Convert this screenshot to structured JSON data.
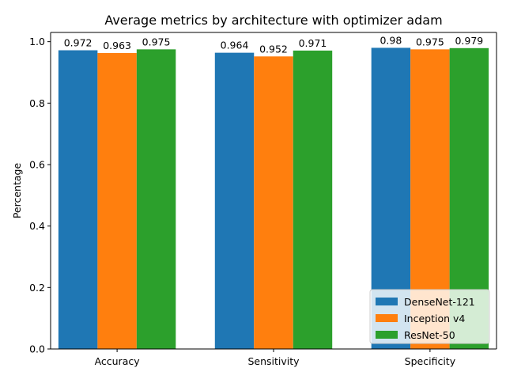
{
  "chart_data": {
    "type": "bar",
    "title": "Average metrics by architecture with optimizer adam",
    "xlabel": "",
    "ylabel": "Percentage",
    "categories": [
      "Accuracy",
      "Sensitivity",
      "Specificity"
    ],
    "ylim": [
      0,
      1.03
    ],
    "yticks": [
      0.0,
      0.2,
      0.4,
      0.6,
      0.8,
      1.0
    ],
    "ytick_labels": [
      "0.0",
      "0.2",
      "0.4",
      "0.6",
      "0.8",
      "1.0"
    ],
    "series": [
      {
        "name": "DenseNet-121",
        "color": "#1f77b4",
        "values": [
          0.972,
          0.964,
          0.98
        ],
        "labels": [
          "0.972",
          "0.964",
          "0.98"
        ]
      },
      {
        "name": "Inception v4",
        "color": "#ff7f0e",
        "values": [
          0.963,
          0.952,
          0.975
        ],
        "labels": [
          "0.963",
          "0.952",
          "0.975"
        ]
      },
      {
        "name": "ResNet-50",
        "color": "#2ca02c",
        "values": [
          0.975,
          0.971,
          0.979
        ],
        "labels": [
          "0.975",
          "0.971",
          "0.979"
        ]
      }
    ],
    "grid": false,
    "legend_position": "lower-right"
  }
}
